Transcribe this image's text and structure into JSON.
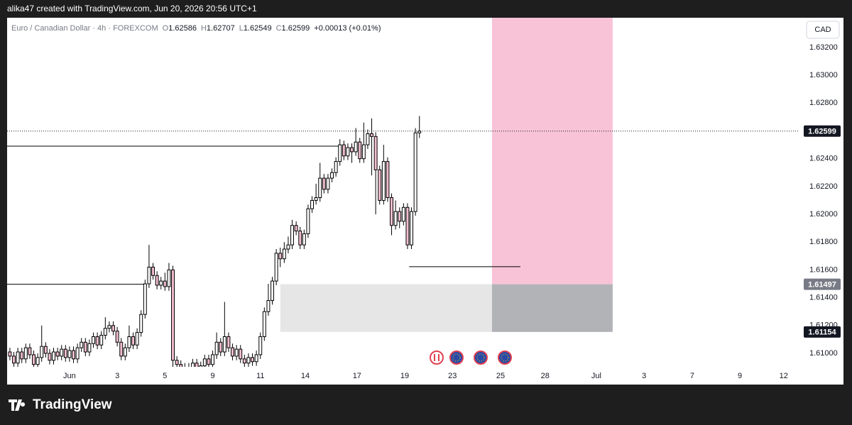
{
  "top_bar": {
    "text": "alika47 created with TradingView.com, Jun 20, 2026 20:56 UTC+1"
  },
  "brand": "TradingView",
  "currency": "CAD",
  "chart_data": {
    "type": "candlestick",
    "title": "Euro / Canadian Dollar · 4h · FOREXCOM",
    "ohlc_labels": [
      "O",
      "H",
      "L",
      "C"
    ],
    "change": "+0.00013 (+0.01%)",
    "up_color": "#ffffff",
    "down_color": "#f4bfd0",
    "border_color": "#000000",
    "x": [
      -15,
      -14,
      -13,
      -12,
      -11,
      -10,
      -9,
      -8,
      -7,
      -6,
      -5,
      -4,
      -3,
      -2,
      -1,
      0,
      1,
      2,
      3,
      4,
      5,
      6,
      7,
      8,
      9,
      10,
      11,
      12,
      13,
      14,
      15,
      16,
      17,
      18,
      19,
      20,
      21,
      22,
      23,
      24,
      25,
      26,
      27,
      28,
      29,
      30,
      31,
      32,
      33,
      34,
      35,
      36,
      37,
      38,
      39,
      40,
      41,
      42,
      43,
      44,
      45,
      46,
      47,
      48,
      49,
      50,
      51,
      52,
      53,
      54,
      55,
      56,
      57,
      58,
      59,
      60,
      61,
      62,
      63,
      64,
      65,
      66,
      67,
      68,
      69,
      70,
      71,
      72,
      73,
      74,
      75,
      76,
      77,
      78,
      79,
      80,
      81,
      82,
      83,
      84,
      85,
      86,
      87,
      88
    ],
    "open": [
      1.6101,
      1.6098,
      1.6093,
      1.6101,
      1.6096,
      1.6104,
      1.6099,
      1.6092,
      1.6097,
      1.6105,
      1.61,
      1.6095,
      1.6101,
      1.6098,
      1.6103,
      1.6097,
      1.6102,
      1.6096,
      1.6104,
      1.6108,
      1.6101,
      1.6107,
      1.6112,
      1.6106,
      1.6113,
      1.6118,
      1.612,
      1.6116,
      1.6108,
      1.6098,
      1.6104,
      1.6112,
      1.6106,
      1.6115,
      1.6128,
      1.615,
      1.6162,
      1.6156,
      1.6149,
      1.6152,
      1.6148,
      1.616,
      1.6095,
      1.6092,
      1.6088,
      1.609,
      1.6086,
      1.6093,
      1.6089,
      1.6091,
      1.6096,
      1.6092,
      1.6099,
      1.6108,
      1.6101,
      1.6112,
      1.6104,
      1.6098,
      1.6103,
      1.6096,
      1.6093,
      1.6097,
      1.6094,
      1.6099,
      1.6112,
      1.613,
      1.6138,
      1.6152,
      1.6172,
      1.6168,
      1.6175,
      1.6178,
      1.6192,
      1.6188,
      1.6178,
      1.6186,
      1.6204,
      1.621,
      1.6212,
      1.6226,
      1.6218,
      1.6226,
      1.623,
      1.6238,
      1.625,
      1.6242,
      1.6248,
      1.6245,
      1.6252,
      1.624,
      1.625,
      1.6258,
      1.6256,
      1.6232,
      1.621,
      1.6238,
      1.6212,
      1.6192,
      1.6202,
      1.6195,
      1.6205,
      1.6178,
      1.6202,
      1.62586
    ],
    "high": [
      1.6104,
      1.6101,
      1.6104,
      1.6104,
      1.6107,
      1.6107,
      1.6102,
      1.61,
      1.612,
      1.6108,
      1.6103,
      1.6104,
      1.6104,
      1.6106,
      1.6106,
      1.6105,
      1.6105,
      1.6107,
      1.6111,
      1.6111,
      1.611,
      1.6115,
      1.6115,
      1.6116,
      1.6126,
      1.6123,
      1.6123,
      1.6119,
      1.6111,
      1.6107,
      1.612,
      1.6115,
      1.6118,
      1.6131,
      1.6153,
      1.6178,
      1.6165,
      1.6159,
      1.6155,
      1.6158,
      1.6165,
      1.6163,
      1.6098,
      1.6095,
      1.6093,
      1.6093,
      1.6096,
      1.6096,
      1.6094,
      1.6099,
      1.6099,
      1.6102,
      1.6115,
      1.6111,
      1.6137,
      1.6115,
      1.6107,
      1.6106,
      1.6106,
      1.6099,
      1.61,
      1.61,
      1.6102,
      1.6115,
      1.6133,
      1.615,
      1.6155,
      1.6175,
      1.6176,
      1.618,
      1.6184,
      1.6196,
      1.6195,
      1.6191,
      1.6189,
      1.6207,
      1.6213,
      1.6222,
      1.6237,
      1.6229,
      1.6229,
      1.6233,
      1.6241,
      1.6254,
      1.6253,
      1.6251,
      1.6251,
      1.6262,
      1.6255,
      1.6266,
      1.6261,
      1.6269,
      1.6259,
      1.6235,
      1.625,
      1.6241,
      1.6215,
      1.621,
      1.6205,
      1.6208,
      1.6208,
      1.6205,
      1.6262,
      1.62707
    ],
    "low": [
      1.6095,
      1.609,
      1.609,
      1.6093,
      1.6093,
      1.6096,
      1.6089,
      1.6089,
      1.6094,
      1.6097,
      1.6092,
      1.6092,
      1.6095,
      1.6095,
      1.6094,
      1.6094,
      1.6093,
      1.6093,
      1.6101,
      1.6098,
      1.6098,
      1.6104,
      1.6103,
      1.6103,
      1.611,
      1.6115,
      1.6113,
      1.6105,
      1.6095,
      1.6095,
      1.6101,
      1.6103,
      1.6103,
      1.6112,
      1.6125,
      1.6147,
      1.6153,
      1.6146,
      1.6146,
      1.6145,
      1.6145,
      1.609,
      1.6085,
      1.6085,
      1.6085,
      1.6083,
      1.6083,
      1.6086,
      1.6086,
      1.6088,
      1.6089,
      1.6089,
      1.6096,
      1.6098,
      1.6098,
      1.6101,
      1.6095,
      1.6095,
      1.6093,
      1.609,
      1.609,
      1.6091,
      1.6091,
      1.6096,
      1.6109,
      1.6127,
      1.6135,
      1.6149,
      1.6162,
      1.6165,
      1.6172,
      1.6175,
      1.6185,
      1.6175,
      1.6175,
      1.6183,
      1.6201,
      1.6207,
      1.6209,
      1.6215,
      1.6215,
      1.6223,
      1.6227,
      1.6235,
      1.6239,
      1.6239,
      1.6237,
      1.6242,
      1.6237,
      1.6237,
      1.6247,
      1.6228,
      1.62,
      1.6207,
      1.6207,
      1.6209,
      1.6185,
      1.6189,
      1.619,
      1.6192,
      1.6175,
      1.6175,
      1.6199,
      1.62549
    ],
    "close": [
      1.6098,
      1.6093,
      1.6101,
      1.6096,
      1.6104,
      1.6099,
      1.6092,
      1.6097,
      1.6105,
      1.61,
      1.6095,
      1.6101,
      1.6098,
      1.6103,
      1.6097,
      1.6102,
      1.6096,
      1.6104,
      1.6108,
      1.6101,
      1.6107,
      1.6112,
      1.6106,
      1.6113,
      1.6118,
      1.612,
      1.6116,
      1.6108,
      1.6098,
      1.6104,
      1.6112,
      1.6106,
      1.6115,
      1.6128,
      1.615,
      1.6162,
      1.6156,
      1.6149,
      1.6152,
      1.6148,
      1.616,
      1.6095,
      1.6092,
      1.6088,
      1.609,
      1.6086,
      1.6093,
      1.6089,
      1.6091,
      1.6096,
      1.6092,
      1.6099,
      1.6108,
      1.6101,
      1.6112,
      1.6104,
      1.6098,
      1.6103,
      1.6096,
      1.6093,
      1.6097,
      1.6094,
      1.6099,
      1.6112,
      1.613,
      1.6138,
      1.6152,
      1.6172,
      1.6168,
      1.6175,
      1.6178,
      1.6192,
      1.6188,
      1.6178,
      1.6186,
      1.6204,
      1.621,
      1.6212,
      1.6226,
      1.6218,
      1.6226,
      1.623,
      1.6238,
      1.625,
      1.6242,
      1.6248,
      1.6245,
      1.6252,
      1.624,
      1.625,
      1.6258,
      1.6256,
      1.6232,
      1.621,
      1.6238,
      1.6212,
      1.6192,
      1.6202,
      1.6195,
      1.6205,
      1.6178,
      1.6202,
      1.62586,
      1.62599
    ],
    "xlim": [
      -15.7,
      183.4
    ],
    "ylim": [
      1.60903,
      1.63414
    ],
    "xticks": [
      {
        "value": 0,
        "label": "Jun"
      },
      {
        "value": 12,
        "label": "3"
      },
      {
        "value": 24,
        "label": "5"
      },
      {
        "value": 36,
        "label": "9"
      },
      {
        "value": 48,
        "label": "11"
      },
      {
        "value": 59.3,
        "label": "14"
      },
      {
        "value": 72.3,
        "label": "17"
      },
      {
        "value": 84.3,
        "label": "19"
      },
      {
        "value": 96.3,
        "label": "23"
      },
      {
        "value": 108.4,
        "label": "25"
      },
      {
        "value": 119.6,
        "label": "28"
      },
      {
        "value": 132.5,
        "label": "Jul"
      },
      {
        "value": 144.5,
        "label": "3"
      },
      {
        "value": 156.6,
        "label": "7"
      },
      {
        "value": 168.6,
        "label": "9"
      },
      {
        "value": 179.6,
        "label": "12"
      }
    ],
    "yticks": [
      {
        "value": 1.632,
        "label": "1.63200"
      },
      {
        "value": 1.63,
        "label": "1.63000"
      },
      {
        "value": 1.628,
        "label": "1.62800"
      },
      {
        "value": 1.624,
        "label": "1.62400"
      },
      {
        "value": 1.622,
        "label": "1.62200"
      },
      {
        "value": 1.62,
        "label": "1.62000"
      },
      {
        "value": 1.618,
        "label": "1.61800"
      },
      {
        "value": 1.616,
        "label": "1.61600"
      },
      {
        "value": 1.614,
        "label": "1.61400"
      },
      {
        "value": 1.612,
        "label": "1.61200"
      },
      {
        "value": 1.61,
        "label": "1.61000"
      }
    ],
    "zones": [
      {
        "x": [
          106.25,
          136.6
        ],
        "y": [
          1.61497,
          1.6345
        ],
        "color": "#f8c3d6"
      },
      {
        "x": [
          106.25,
          136.6
        ],
        "y": [
          1.61154,
          1.61497
        ],
        "color": "#b2b3b7"
      },
      {
        "x": [
          53,
          106.25
        ],
        "y": [
          1.61154,
          1.61497
        ],
        "color": "#e6e6e6"
      }
    ],
    "lines": [
      {
        "x": [
          -15.7,
          68.2
        ],
        "y": 1.6249
      },
      {
        "x": [
          -15.7,
          19.1
        ],
        "y": 1.61497
      },
      {
        "x": [
          85.4,
          113.4
        ],
        "y": 1.61623
      }
    ]
  }
}
